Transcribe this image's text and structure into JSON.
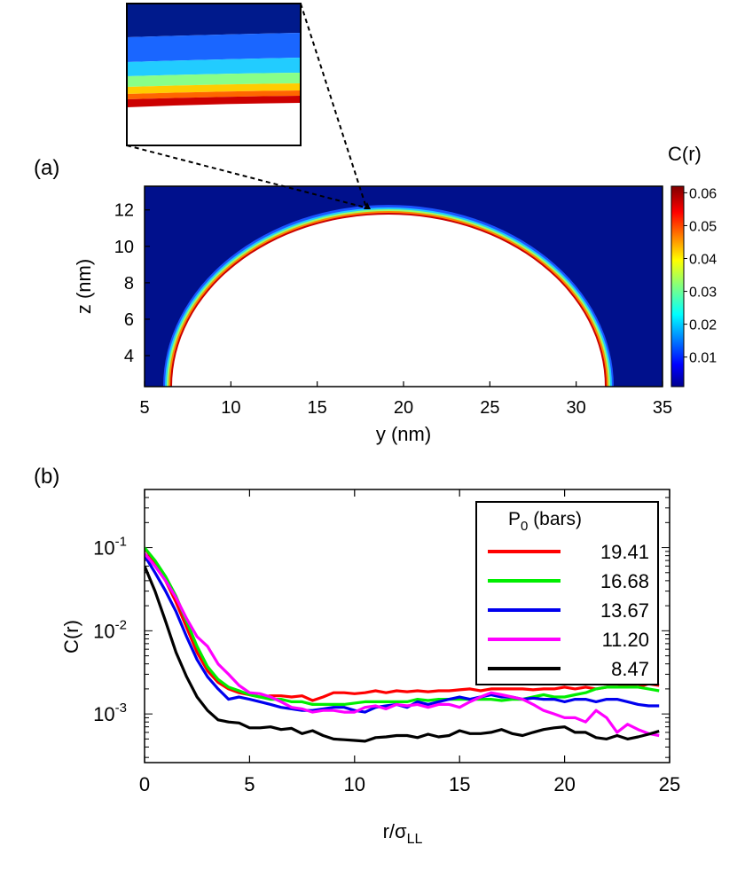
{
  "panel_a": {
    "label": "(a)",
    "xlabel": "y (nm)",
    "ylabel": "z (nm)",
    "colorbar_label": "C(r)",
    "xticks": [
      "5",
      "10",
      "15",
      "20",
      "25",
      "30",
      "35"
    ],
    "yticks": [
      "4",
      "6",
      "8",
      "10",
      "12"
    ],
    "colorbar_ticks": [
      "0.01",
      "0.02",
      "0.03",
      "0.04",
      "0.05",
      "0.06"
    ],
    "colors": {
      "background": "#00108c",
      "droplet": "#ffffff"
    }
  },
  "panel_b": {
    "label": "(b)",
    "xlabel_main": "r/σ",
    "xlabel_sub": "LL",
    "ylabel": "C(r)",
    "xticks": [
      "0",
      "5",
      "10",
      "15",
      "20",
      "25"
    ],
    "yticks": [
      {
        "base": "10",
        "exp": "-1"
      },
      {
        "base": "10",
        "exp": "-2"
      },
      {
        "base": "10",
        "exp": "-3"
      }
    ],
    "legend_title_main": "P",
    "legend_title_sub": "0",
    "legend_title_rest": " (bars)"
  },
  "chart_data": [
    {
      "type": "heatmap",
      "title": "",
      "xlabel": "y (nm)",
      "ylabel": "z (nm)",
      "xlim": [
        5,
        35
      ],
      "ylim": [
        2.3,
        13.3
      ],
      "colorbar": {
        "label": "C(r)",
        "range": [
          0.001,
          0.062
        ],
        "colormap": "jet"
      },
      "droplet": {
        "center_y": 19.25,
        "base_z": 2.3,
        "contact_left_y": 6.55,
        "contact_right_y": 32.0,
        "apex_z": 11.9
      },
      "inset": {
        "description_level": "zoom of interface near y=18, z=12"
      }
    },
    {
      "type": "line",
      "title": "",
      "xlabel": "r/σLL",
      "ylabel": "C(r)",
      "xlim": [
        0,
        25
      ],
      "ylim": [
        0.00026,
        0.5
      ],
      "yscale": "log",
      "legend": {
        "title": "P0 (bars)",
        "position": "top-right"
      },
      "series": [
        {
          "name": "19.41",
          "color": "#ff0000",
          "x": [
            0,
            0.5,
            1,
            1.5,
            2,
            2.5,
            3,
            3.5,
            4,
            4.5,
            5,
            5.5,
            6,
            6.5,
            7,
            7.5,
            8,
            8.5,
            9,
            9.5,
            10,
            10.5,
            11,
            11.5,
            12,
            12.5,
            13,
            13.5,
            14,
            14.5,
            15,
            15.5,
            16,
            16.5,
            17,
            17.5,
            18,
            18.5,
            19,
            19.5,
            20,
            20.5,
            21,
            21.5,
            22,
            22.5,
            23,
            23.5,
            24,
            24.5
          ],
          "y": [
            0.1,
            0.065,
            0.04,
            0.022,
            0.011,
            0.0055,
            0.0033,
            0.0024,
            0.002,
            0.0018,
            0.0017,
            0.0016,
            0.00165,
            0.00165,
            0.0016,
            0.00165,
            0.00145,
            0.0016,
            0.0018,
            0.0018,
            0.00175,
            0.0018,
            0.0019,
            0.0018,
            0.0019,
            0.00185,
            0.0019,
            0.00185,
            0.0019,
            0.0019,
            0.00195,
            0.002,
            0.0019,
            0.002,
            0.002,
            0.002,
            0.002,
            0.00195,
            0.002,
            0.002,
            0.0021,
            0.002,
            0.0021,
            0.002,
            0.0021,
            0.0021,
            0.0022,
            0.0021,
            0.0023,
            0.0022
          ]
        },
        {
          "name": "16.68",
          "color": "#00ee00",
          "x": [
            0,
            0.5,
            1,
            1.5,
            2,
            2.5,
            3,
            3.5,
            4,
            4.5,
            5,
            5.5,
            6,
            6.5,
            7,
            7.5,
            8,
            8.5,
            9,
            9.5,
            10,
            10.5,
            11,
            11.5,
            12,
            12.5,
            13,
            13.5,
            14,
            14.5,
            15,
            15.5,
            16,
            16.5,
            17,
            17.5,
            18,
            18.5,
            19,
            19.5,
            20,
            20.5,
            21,
            21.5,
            22,
            22.5,
            23,
            23.5,
            24,
            24.5
          ],
          "y": [
            0.1,
            0.07,
            0.045,
            0.026,
            0.013,
            0.0065,
            0.0037,
            0.0026,
            0.0021,
            0.0019,
            0.0017,
            0.0016,
            0.0015,
            0.0015,
            0.0014,
            0.0014,
            0.0013,
            0.0013,
            0.0013,
            0.0013,
            0.00135,
            0.0014,
            0.0014,
            0.0014,
            0.0014,
            0.0014,
            0.0015,
            0.00145,
            0.0015,
            0.0015,
            0.0015,
            0.0015,
            0.0015,
            0.0015,
            0.00145,
            0.0015,
            0.0015,
            0.0016,
            0.0017,
            0.0016,
            0.0016,
            0.0017,
            0.0018,
            0.002,
            0.0021,
            0.0021,
            0.0021,
            0.0021,
            0.002,
            0.0019
          ]
        },
        {
          "name": "13.67",
          "color": "#0000ee",
          "x": [
            0,
            0.5,
            1,
            1.5,
            2,
            2.5,
            3,
            3.5,
            4,
            4.5,
            5,
            5.5,
            6,
            6.5,
            7,
            7.5,
            8,
            8.5,
            9,
            9.5,
            10,
            10.5,
            11,
            11.5,
            12,
            12.5,
            13,
            13.5,
            14,
            14.5,
            15,
            15.5,
            16,
            16.5,
            17,
            17.5,
            18,
            18.5,
            19,
            19.5,
            20,
            20.5,
            21,
            21.5,
            22,
            22.5,
            23,
            23.5,
            24,
            24.5
          ],
          "y": [
            0.08,
            0.05,
            0.03,
            0.017,
            0.0085,
            0.0045,
            0.0028,
            0.002,
            0.0015,
            0.0016,
            0.0015,
            0.0014,
            0.0013,
            0.0012,
            0.00115,
            0.0011,
            0.0011,
            0.00115,
            0.0012,
            0.0012,
            0.0011,
            0.00105,
            0.0012,
            0.00125,
            0.0013,
            0.0012,
            0.0014,
            0.0013,
            0.0014,
            0.0015,
            0.0016,
            0.0015,
            0.0016,
            0.0017,
            0.0016,
            0.0016,
            0.0015,
            0.00155,
            0.0015,
            0.0015,
            0.0014,
            0.0015,
            0.0015,
            0.0014,
            0.0015,
            0.0015,
            0.0014,
            0.0013,
            0.00125,
            0.00125
          ]
        },
        {
          "name": "11.20",
          "color": "#ff00ff",
          "x": [
            0,
            0.5,
            1,
            1.5,
            2,
            2.5,
            3,
            3.5,
            4,
            4.5,
            5,
            5.5,
            6,
            6.5,
            7,
            7.5,
            8,
            8.5,
            9,
            9.5,
            10,
            10.5,
            11,
            11.5,
            12,
            12.5,
            13,
            13.5,
            14,
            14.5,
            15,
            15.5,
            16,
            16.5,
            17,
            17.5,
            18,
            18.5,
            19,
            19.5,
            20,
            20.5,
            21,
            21.5,
            22,
            22.5,
            23,
            23.5,
            24,
            24.5
          ],
          "y": [
            0.085,
            0.06,
            0.04,
            0.025,
            0.014,
            0.0085,
            0.0065,
            0.004,
            0.003,
            0.0022,
            0.0018,
            0.00175,
            0.0016,
            0.0014,
            0.0012,
            0.00115,
            0.00105,
            0.0011,
            0.0011,
            0.00105,
            0.00105,
            0.0012,
            0.00125,
            0.00115,
            0.0013,
            0.00125,
            0.0013,
            0.0012,
            0.0013,
            0.0013,
            0.0012,
            0.0014,
            0.0016,
            0.0018,
            0.0017,
            0.0016,
            0.0015,
            0.0013,
            0.0011,
            0.001,
            0.0009,
            0.0009,
            0.0008,
            0.0011,
            0.0009,
            0.0006,
            0.00075,
            0.00065,
            0.00058,
            0.00055
          ]
        },
        {
          "name": "8.47",
          "color": "#000000",
          "x": [
            0,
            0.5,
            1,
            1.5,
            2,
            2.5,
            3,
            3.5,
            4,
            4.5,
            5,
            5.5,
            6,
            6.5,
            7,
            7.5,
            8,
            8.5,
            9,
            9.5,
            10,
            10.5,
            11,
            11.5,
            12,
            12.5,
            13,
            13.5,
            14,
            14.5,
            15,
            15.5,
            16,
            16.5,
            17,
            17.5,
            18,
            18.5,
            19,
            19.5,
            20,
            20.5,
            21,
            21.5,
            22,
            22.5,
            23,
            23.5,
            24,
            24.5
          ],
          "y": [
            0.06,
            0.03,
            0.013,
            0.0055,
            0.0028,
            0.0016,
            0.0011,
            0.00085,
            0.0008,
            0.00078,
            0.00068,
            0.00068,
            0.0007,
            0.00065,
            0.00067,
            0.00058,
            0.00063,
            0.00055,
            0.0005,
            0.00049,
            0.00048,
            0.00047,
            0.00052,
            0.00053,
            0.00055,
            0.00055,
            0.00052,
            0.00057,
            0.00053,
            0.00055,
            0.00063,
            0.00058,
            0.00058,
            0.0006,
            0.00065,
            0.00058,
            0.00055,
            0.0006,
            0.00065,
            0.00068,
            0.0007,
            0.0006,
            0.0006,
            0.00052,
            0.0005,
            0.00055,
            0.0005,
            0.00053,
            0.00057,
            0.00062
          ]
        }
      ]
    }
  ]
}
